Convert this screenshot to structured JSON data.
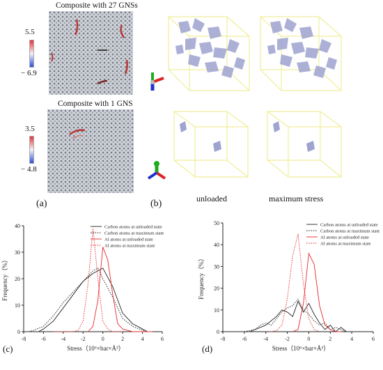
{
  "panel_a": {
    "top": {
      "title": "Composite with 27 GNSs",
      "cb_max": "5.5",
      "cb_min": "− 6.9"
    },
    "bottom": {
      "title": "Composite with 1 GNS",
      "cb_max": "3.5",
      "cb_min": "− 4.8"
    },
    "label": "(a)"
  },
  "panel_b": {
    "label": "(b)",
    "unloaded_label": "unloaded",
    "max_label": "maximum stress"
  },
  "colors": {
    "carbon": "#222222",
    "al": "#e8262a",
    "box": "#f0ee9a",
    "gns": "#8a8fbf"
  },
  "chart_data": [
    {
      "label": "(c)",
      "type": "line",
      "xlabel": "Stress（10⁶×bar×Å³）",
      "ylabel": "Frequency（%）",
      "xlim": [
        -8,
        6
      ],
      "ylim": [
        0,
        40
      ],
      "xticks": [
        "-8",
        "-6",
        "-4",
        "-2",
        "0",
        "2",
        "4",
        "6"
      ],
      "yticks": [
        "0",
        "10",
        "20",
        "30",
        "40"
      ],
      "legend_position": "top-right",
      "series": [
        {
          "name": "Carbon atoms at unloaded state",
          "color": "#222222",
          "dash": "solid",
          "x": [
            -6.5,
            -6,
            -5,
            -4,
            -3,
            -2,
            -1,
            0,
            1,
            2,
            3,
            4,
            4.5
          ],
          "y": [
            0,
            1,
            4,
            9,
            14,
            19,
            22,
            24,
            17,
            7,
            3,
            1,
            0
          ]
        },
        {
          "name": "Carbon atoms at maximum state",
          "color": "#222222",
          "dash": "dot",
          "x": [
            -7.5,
            -7,
            -6,
            -5,
            -4,
            -3,
            -2,
            -1,
            -0.5,
            0,
            1,
            2,
            3,
            4,
            4.5
          ],
          "y": [
            0,
            0.5,
            2,
            6,
            11,
            15,
            19,
            23,
            24,
            20,
            13,
            5,
            2,
            0.5,
            0
          ]
        },
        {
          "name": "Al atoms at unloaded state",
          "color": "#e8262a",
          "dash": "solid",
          "x": [
            -1.5,
            -1,
            -0.5,
            0,
            0.5,
            1,
            1.5,
            2,
            2.5,
            3,
            5
          ],
          "y": [
            0,
            2,
            12,
            32,
            27,
            14,
            3,
            1,
            0.5,
            0,
            0
          ]
        },
        {
          "name": "Al atoms at maximum state",
          "color": "#e8262a",
          "dash": "dot",
          "x": [
            -5,
            -3,
            -2.5,
            -2,
            -1.5,
            -1,
            -0.5,
            0,
            0.5,
            1,
            2
          ],
          "y": [
            0,
            0,
            0.5,
            4,
            18,
            39,
            20,
            4,
            1,
            0,
            0
          ]
        }
      ]
    },
    {
      "label": "(d)",
      "type": "line",
      "xlabel": "Stress（10⁶×bar×Å³）",
      "ylabel": "Frequency（%）",
      "xlim": [
        -8,
        6
      ],
      "ylim": [
        0,
        50
      ],
      "xticks": [
        "-8",
        "-6",
        "-4",
        "-2",
        "0",
        "2",
        "4",
        "6"
      ],
      "yticks": [
        "0",
        "10",
        "20",
        "30",
        "40",
        "50"
      ],
      "legend_position": "top-right",
      "series": [
        {
          "name": "Carbon atoms at unloaded state",
          "color": "#222222",
          "dash": "solid",
          "x": [
            -5.5,
            -5,
            -4.5,
            -4,
            -3.5,
            -3,
            -2.5,
            -2,
            -1.5,
            -1,
            -0.5,
            0,
            0.5,
            1,
            1.5,
            2,
            2.5,
            3,
            3.5,
            4
          ],
          "y": [
            0,
            1,
            2,
            3,
            5,
            7,
            10,
            9,
            7,
            14,
            9,
            13,
            8,
            4,
            1,
            3,
            0,
            2,
            0,
            0
          ]
        },
        {
          "name": "Carbon atoms at maximum state",
          "color": "#222222",
          "dash": "dot",
          "x": [
            -6,
            -5,
            -4.5,
            -4,
            -3.5,
            -3,
            -2.5,
            -2,
            -1.5,
            -1,
            -0.5,
            0,
            0.5,
            1,
            1.5,
            2,
            2.5,
            3,
            3.5,
            4
          ],
          "y": [
            0,
            1,
            3,
            4,
            3,
            6,
            9,
            11,
            12,
            15,
            10,
            8,
            5,
            3,
            4,
            1,
            2,
            1,
            0,
            0
          ]
        },
        {
          "name": "Al atoms at unloaded state",
          "color": "#e8262a",
          "dash": "solid",
          "x": [
            -1.5,
            -1,
            -0.5,
            0,
            0.5,
            1,
            1.5,
            2,
            2.5,
            3
          ],
          "y": [
            0,
            1,
            13,
            36,
            31,
            12,
            3,
            1,
            0,
            0
          ]
        },
        {
          "name": "Al atoms at maximum state",
          "color": "#e8262a",
          "dash": "dot",
          "x": [
            -3.5,
            -3,
            -2.5,
            -2,
            -1.5,
            -1,
            -0.5,
            0,
            0.5,
            1
          ],
          "y": [
            0,
            0.5,
            3,
            15,
            35,
            45,
            22,
            6,
            1,
            0
          ]
        }
      ]
    }
  ]
}
